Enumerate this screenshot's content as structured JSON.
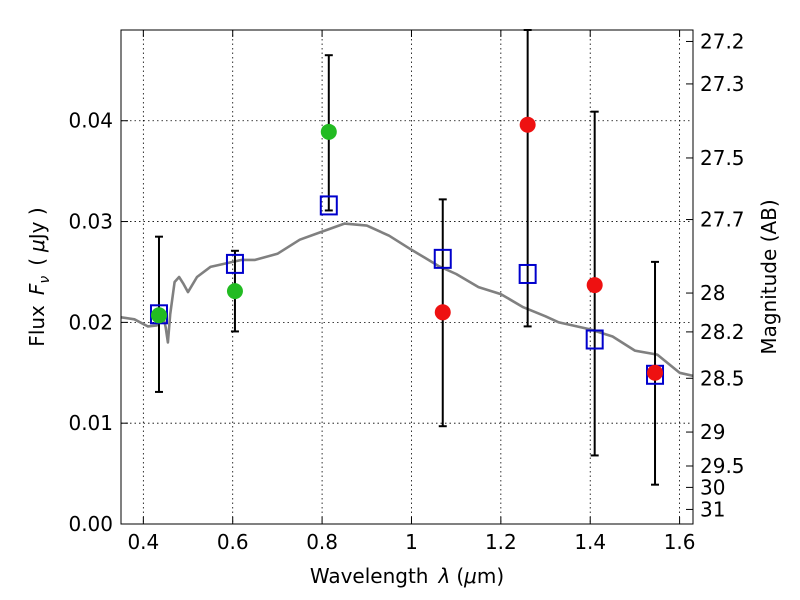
{
  "chart_data": {
    "type": "scatter",
    "xlabel_main": "Wavelength",
    "xlabel_symbol": "λ",
    "xlabel_unit_open": "(",
    "xlabel_unit_mu": "μ",
    "xlabel_unit_rest": "m)",
    "ylabel_main": "Flux",
    "ylabel_symbol": "F",
    "ylabel_sub": "ν",
    "ylabel_unit_open": "(",
    "ylabel_unit_mu": "μ",
    "ylabel_unit_rest": "Jy )",
    "y2label": "Magnitude (AB)",
    "xlim": [
      0.35,
      1.63
    ],
    "ylim": [
      0.0,
      0.049
    ],
    "grid": true,
    "x_ticks": [
      {
        "value": 0.4,
        "label": "0.4"
      },
      {
        "value": 0.6,
        "label": "0.6"
      },
      {
        "value": 0.8,
        "label": "0.8"
      },
      {
        "value": 1.0,
        "label": "1"
      },
      {
        "value": 1.2,
        "label": "1.2"
      },
      {
        "value": 1.4,
        "label": "1.4"
      },
      {
        "value": 1.6,
        "label": "1.6"
      }
    ],
    "y_ticks": [
      {
        "value": 0.0,
        "label": "0.00"
      },
      {
        "value": 0.01,
        "label": "0.01"
      },
      {
        "value": 0.02,
        "label": "0.02"
      },
      {
        "value": 0.03,
        "label": "0.03"
      },
      {
        "value": 0.04,
        "label": "0.04"
      }
    ],
    "y2_ticks": [
      {
        "mag": 27.2,
        "label": "27.2"
      },
      {
        "mag": 27.3,
        "label": "27.3"
      },
      {
        "mag": 27.5,
        "label": "27.5"
      },
      {
        "mag": 27.7,
        "label": "27.7"
      },
      {
        "mag": 28.0,
        "label": "28"
      },
      {
        "mag": 28.2,
        "label": "28.2"
      },
      {
        "mag": 28.5,
        "label": "28.5"
      },
      {
        "mag": 29.0,
        "label": "29"
      },
      {
        "mag": 29.5,
        "label": "29.5"
      },
      {
        "mag": 30.0,
        "label": "30"
      },
      {
        "mag": 31.0,
        "label": "31"
      }
    ],
    "series": [
      {
        "kind": "model_sed",
        "color": "#808080",
        "x": [
          0.35,
          0.38,
          0.41,
          0.43,
          0.445,
          0.45,
          0.455,
          0.46,
          0.47,
          0.48,
          0.49,
          0.5,
          0.52,
          0.55,
          0.58,
          0.6,
          0.62,
          0.65,
          0.7,
          0.75,
          0.8,
          0.85,
          0.9,
          0.95,
          1.0,
          1.03,
          1.06,
          1.1,
          1.15,
          1.2,
          1.25,
          1.3,
          1.33,
          1.35,
          1.4,
          1.45,
          1.5,
          1.55,
          1.6,
          1.63
        ],
        "y": [
          0.0205,
          0.0203,
          0.0196,
          0.0197,
          0.0205,
          0.0195,
          0.018,
          0.0208,
          0.024,
          0.0245,
          0.0238,
          0.023,
          0.0245,
          0.0255,
          0.0258,
          0.026,
          0.0262,
          0.0262,
          0.0268,
          0.0282,
          0.029,
          0.0298,
          0.0296,
          0.0286,
          0.0272,
          0.0264,
          0.0256,
          0.0248,
          0.0235,
          0.0228,
          0.0215,
          0.0206,
          0.02,
          0.0198,
          0.0193,
          0.0186,
          0.0172,
          0.0168,
          0.015,
          0.0147
        ]
      },
      {
        "kind": "model_photometry",
        "marker": "open-square",
        "color": "#0000cc",
        "x": [
          0.435,
          0.605,
          0.815,
          1.07,
          1.26,
          1.41,
          1.545
        ],
        "y": [
          0.0208,
          0.0258,
          0.0316,
          0.0263,
          0.0248,
          0.0183,
          0.0148
        ]
      },
      {
        "kind": "observed_detections",
        "marker": "filled-circle",
        "color": "#22bb22",
        "x": [
          0.435,
          0.605,
          0.815
        ],
        "y": [
          0.0207,
          0.0231,
          0.0389
        ]
      },
      {
        "kind": "observed_other",
        "marker": "filled-circle",
        "color": "#ee1111",
        "x": [
          1.07,
          1.26,
          1.41,
          1.545
        ],
        "y": [
          0.021,
          0.0396,
          0.0237,
          0.015
        ]
      },
      {
        "kind": "error_bars",
        "color": "#000000",
        "x": [
          0.435,
          0.605,
          0.815,
          1.07,
          1.26,
          1.41,
          1.545
        ],
        "ylow": [
          0.0131,
          0.0191,
          0.0311,
          0.0097,
          0.0196,
          0.0068,
          0.0039
        ],
        "yhigh": [
          0.0285,
          0.0271,
          0.0465,
          0.0322,
          0.049,
          0.0409,
          0.026
        ]
      }
    ]
  }
}
